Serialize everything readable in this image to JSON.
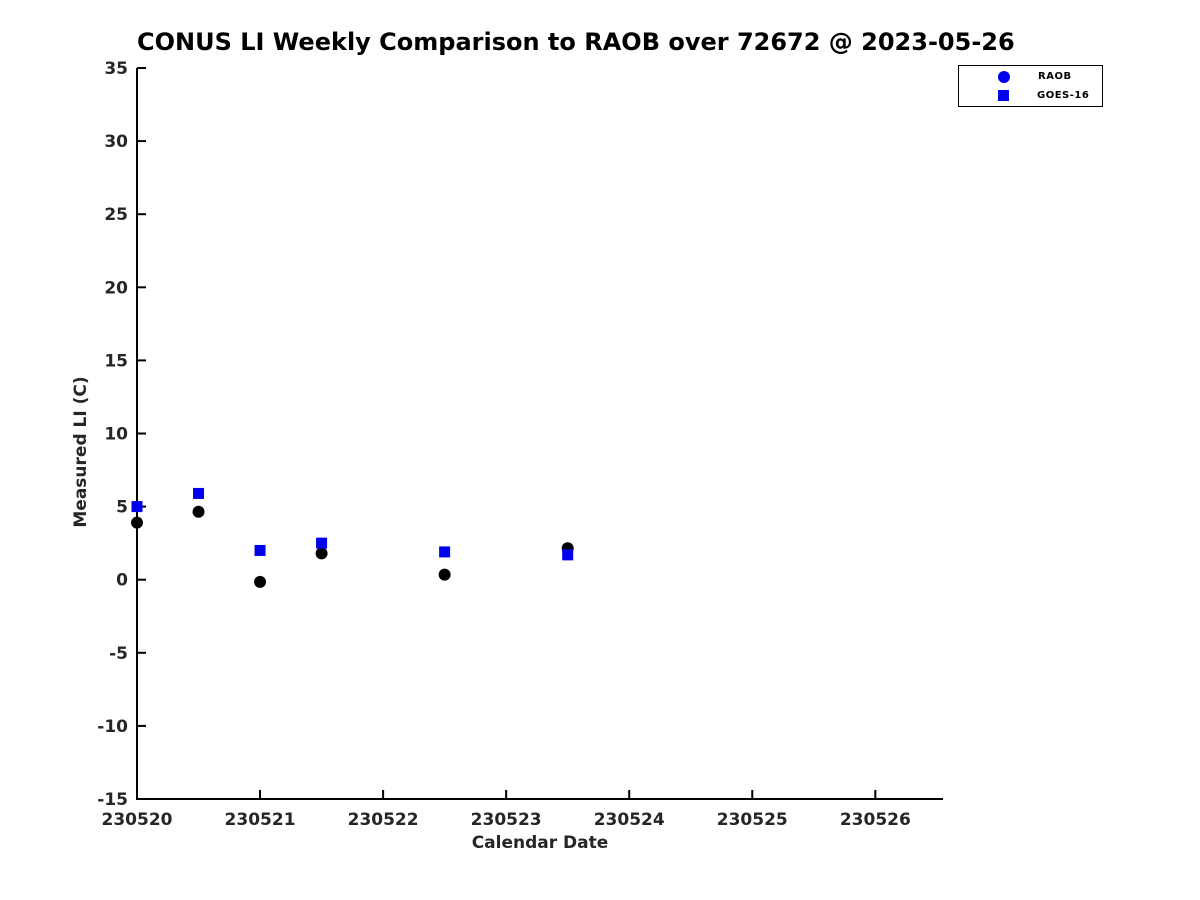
{
  "window": {
    "background": "#FFFFFF"
  },
  "chart_data": {
    "type": "scatter",
    "title": "CONUS LI Weekly Comparison to RAOB over 72672 @ 2023-05-26",
    "xlabel": "Calendar Date",
    "ylabel": "Measured LI (C)",
    "xlim": [
      230520,
      230526.55
    ],
    "ylim": [
      -15,
      35
    ],
    "x_ticks": [
      230520,
      230521,
      230522,
      230523,
      230524,
      230525,
      230526
    ],
    "y_ticks": [
      -15,
      -10,
      -5,
      0,
      5,
      10,
      15,
      20,
      25,
      30,
      35
    ],
    "grid": false,
    "axis_color": "#000000",
    "tick_label_color": "#262626",
    "legend": {
      "position": "top-right",
      "entries": [
        "RAOB",
        "GOES-16"
      ]
    },
    "series": [
      {
        "name": "RAOB",
        "marker": "circle",
        "color": "#000000",
        "legend_marker_color": "#0000EE",
        "x": [
          230520,
          230520.5,
          230521,
          230521.5,
          230522.5,
          230523.5
        ],
        "y": [
          3.9,
          4.65,
          -0.15,
          1.8,
          0.35,
          2.15
        ]
      },
      {
        "name": "GOES-16",
        "marker": "square",
        "color": "#0000EE",
        "legend_marker_color": "#0000EE",
        "x": [
          230520,
          230520.5,
          230521,
          230521.5,
          230522.5,
          230523.5
        ],
        "y": [
          5.0,
          5.9,
          2.0,
          2.5,
          1.9,
          1.7
        ]
      }
    ]
  }
}
